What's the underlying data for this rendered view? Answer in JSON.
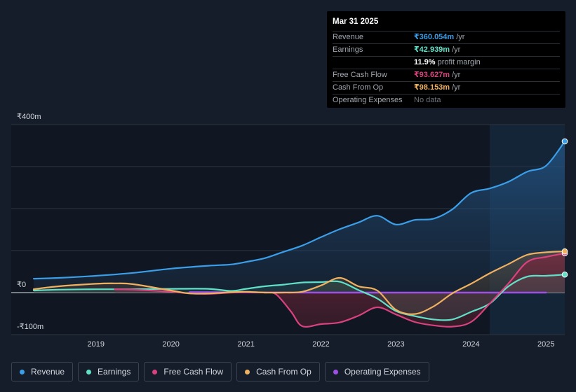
{
  "tooltip": {
    "date": "Mar 31 2025",
    "rows": [
      {
        "label": "Revenue",
        "value": "₹360.054m",
        "unit": "/yr",
        "color": "#3b9ee8"
      },
      {
        "label": "Earnings",
        "value": "₹42.939m",
        "unit": "/yr",
        "color": "#61e0c8"
      },
      {
        "label": "",
        "value": "11.9%",
        "unit": "profit margin",
        "color": "#ffffff"
      },
      {
        "label": "Free Cash Flow",
        "value": "₹93.627m",
        "unit": "/yr",
        "color": "#d9427e"
      },
      {
        "label": "Cash From Op",
        "value": "₹98.153m",
        "unit": "/yr",
        "color": "#efb160"
      },
      {
        "label": "Operating Expenses",
        "value": "No data",
        "unit": "",
        "color": "#6e747c"
      }
    ]
  },
  "legend": [
    {
      "label": "Revenue",
      "color": "#3b9ee8"
    },
    {
      "label": "Earnings",
      "color": "#61e0c8"
    },
    {
      "label": "Free Cash Flow",
      "color": "#d9427e"
    },
    {
      "label": "Cash From Op",
      "color": "#efb160"
    },
    {
      "label": "Operating Expenses",
      "color": "#9d4fe6"
    }
  ],
  "chart_data": {
    "type": "area",
    "ylim": [
      -100,
      400
    ],
    "y_tick_labels": [
      {
        "value": 400,
        "label": "₹400m"
      },
      {
        "value": 0,
        "label": "₹0"
      },
      {
        "value": -100,
        "label": "-₹100m"
      }
    ],
    "x_ticks": [
      2019,
      2020,
      2021,
      2022,
      2023,
      2024,
      2025
    ],
    "x_range": [
      2018.17,
      2025.25
    ],
    "forecast_start": 2024.25,
    "series": [
      {
        "name": "Revenue",
        "color": "#3b9ee8",
        "points": [
          [
            2018.17,
            33
          ],
          [
            2018.5,
            35
          ],
          [
            2019,
            40
          ],
          [
            2019.5,
            47
          ],
          [
            2020,
            57
          ],
          [
            2020.5,
            64
          ],
          [
            2020.8,
            67
          ],
          [
            2021,
            73
          ],
          [
            2021.25,
            82
          ],
          [
            2021.5,
            97
          ],
          [
            2021.75,
            112
          ],
          [
            2022,
            132
          ],
          [
            2022.25,
            151
          ],
          [
            2022.5,
            167
          ],
          [
            2022.75,
            183
          ],
          [
            2023,
            162
          ],
          [
            2023.25,
            173
          ],
          [
            2023.5,
            176
          ],
          [
            2023.75,
            198
          ],
          [
            2024,
            237
          ],
          [
            2024.25,
            248
          ],
          [
            2024.5,
            264
          ],
          [
            2024.75,
            288
          ],
          [
            2025,
            302
          ],
          [
            2025.25,
            360.054
          ]
        ]
      },
      {
        "name": "Earnings",
        "color": "#61e0c8",
        "points": [
          [
            2018.17,
            5
          ],
          [
            2018.5,
            7
          ],
          [
            2019,
            8
          ],
          [
            2019.5,
            8
          ],
          [
            2020,
            9
          ],
          [
            2020.5,
            9
          ],
          [
            2020.8,
            4
          ],
          [
            2021,
            9
          ],
          [
            2021.25,
            15
          ],
          [
            2021.5,
            19
          ],
          [
            2021.75,
            24
          ],
          [
            2022,
            25
          ],
          [
            2022.25,
            26
          ],
          [
            2022.5,
            6
          ],
          [
            2022.75,
            -14
          ],
          [
            2023,
            -44
          ],
          [
            2023.25,
            -56
          ],
          [
            2023.5,
            -64
          ],
          [
            2023.75,
            -64
          ],
          [
            2024,
            -46
          ],
          [
            2024.25,
            -26
          ],
          [
            2024.5,
            15
          ],
          [
            2024.75,
            38
          ],
          [
            2025,
            40
          ],
          [
            2025.25,
            42.939
          ]
        ]
      },
      {
        "name": "Free Cash Flow",
        "color": "#d9427e",
        "points": [
          [
            2019.25,
            8
          ],
          [
            2019.5,
            7
          ],
          [
            2020,
            2
          ],
          [
            2020.25,
            -2
          ],
          [
            2020.5,
            -3
          ],
          [
            2020.8,
            0
          ],
          [
            2021,
            1
          ],
          [
            2021.25,
            0
          ],
          [
            2021.4,
            -4
          ],
          [
            2021.6,
            -45
          ],
          [
            2021.75,
            -80
          ],
          [
            2022,
            -75
          ],
          [
            2022.25,
            -71
          ],
          [
            2022.5,
            -55
          ],
          [
            2022.75,
            -35
          ],
          [
            2023,
            -52
          ],
          [
            2023.25,
            -70
          ],
          [
            2023.5,
            -78
          ],
          [
            2023.75,
            -81
          ],
          [
            2024,
            -70
          ],
          [
            2024.25,
            -26
          ],
          [
            2024.5,
            22
          ],
          [
            2024.75,
            73
          ],
          [
            2025,
            85
          ],
          [
            2025.25,
            93.627
          ]
        ]
      },
      {
        "name": "Cash From Op",
        "color": "#efb160",
        "points": [
          [
            2018.17,
            8
          ],
          [
            2018.5,
            15
          ],
          [
            2019,
            21
          ],
          [
            2019.25,
            22
          ],
          [
            2019.5,
            20
          ],
          [
            2020,
            5
          ],
          [
            2020.25,
            -2
          ],
          [
            2020.5,
            -2
          ],
          [
            2020.8,
            1
          ],
          [
            2021,
            2
          ],
          [
            2021.25,
            0
          ],
          [
            2021.5,
            0
          ],
          [
            2021.75,
            2
          ],
          [
            2022,
            17
          ],
          [
            2022.25,
            35
          ],
          [
            2022.5,
            15
          ],
          [
            2022.75,
            5
          ],
          [
            2023,
            -41
          ],
          [
            2023.25,
            -51
          ],
          [
            2023.5,
            -33
          ],
          [
            2023.75,
            -2
          ],
          [
            2024,
            21
          ],
          [
            2024.25,
            46
          ],
          [
            2024.5,
            68
          ],
          [
            2024.75,
            90
          ],
          [
            2025,
            96
          ],
          [
            2025.25,
            98.153
          ]
        ]
      },
      {
        "name": "Operating Expenses",
        "color": "#9d4fe6",
        "points": [
          [
            2020.25,
            1
          ],
          [
            2022,
            0
          ],
          [
            2023,
            0
          ],
          [
            2024,
            0
          ],
          [
            2025,
            0
          ]
        ]
      }
    ]
  }
}
